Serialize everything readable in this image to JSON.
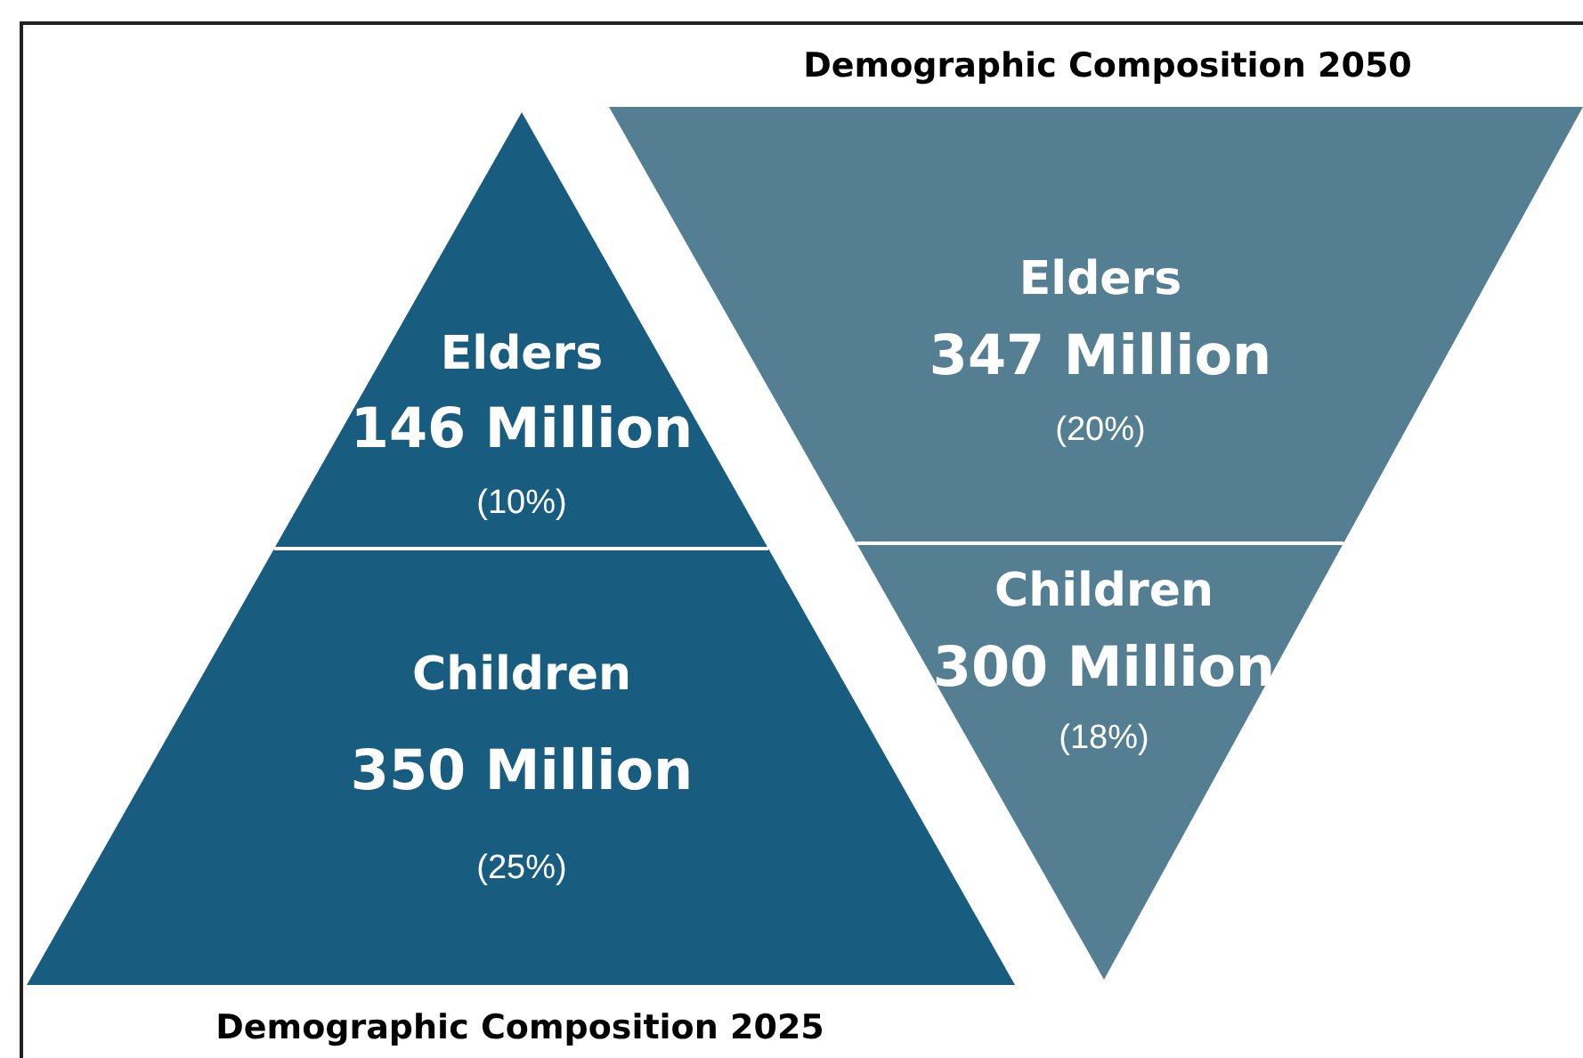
{
  "chart_data": [
    {
      "type": "other",
      "title": "Demographic Composition 2025",
      "categories": [
        "Elders",
        "Children"
      ],
      "colors": [
        "#185c80",
        "#185c80"
      ],
      "series": [
        {
          "values": [
            146,
            350
          ],
          "value_labels": [
            "146 Million",
            "350 Million"
          ]
        },
        {
          "values": [
            10,
            25
          ],
          "value_labels": [
            "(10%)",
            "(25%)"
          ]
        }
      ]
    },
    {
      "type": "other",
      "title": "Demographic Composition 2050",
      "categories": [
        "Elders",
        "Children"
      ],
      "colors": [
        "#547f93",
        "#547f93"
      ],
      "series": [
        {
          "values": [
            347,
            300
          ],
          "value_labels": [
            "347 Million",
            "300 Million"
          ]
        },
        {
          "values": [
            20,
            18
          ],
          "value_labels": [
            "(20%)",
            "(18%)"
          ]
        }
      ]
    }
  ]
}
